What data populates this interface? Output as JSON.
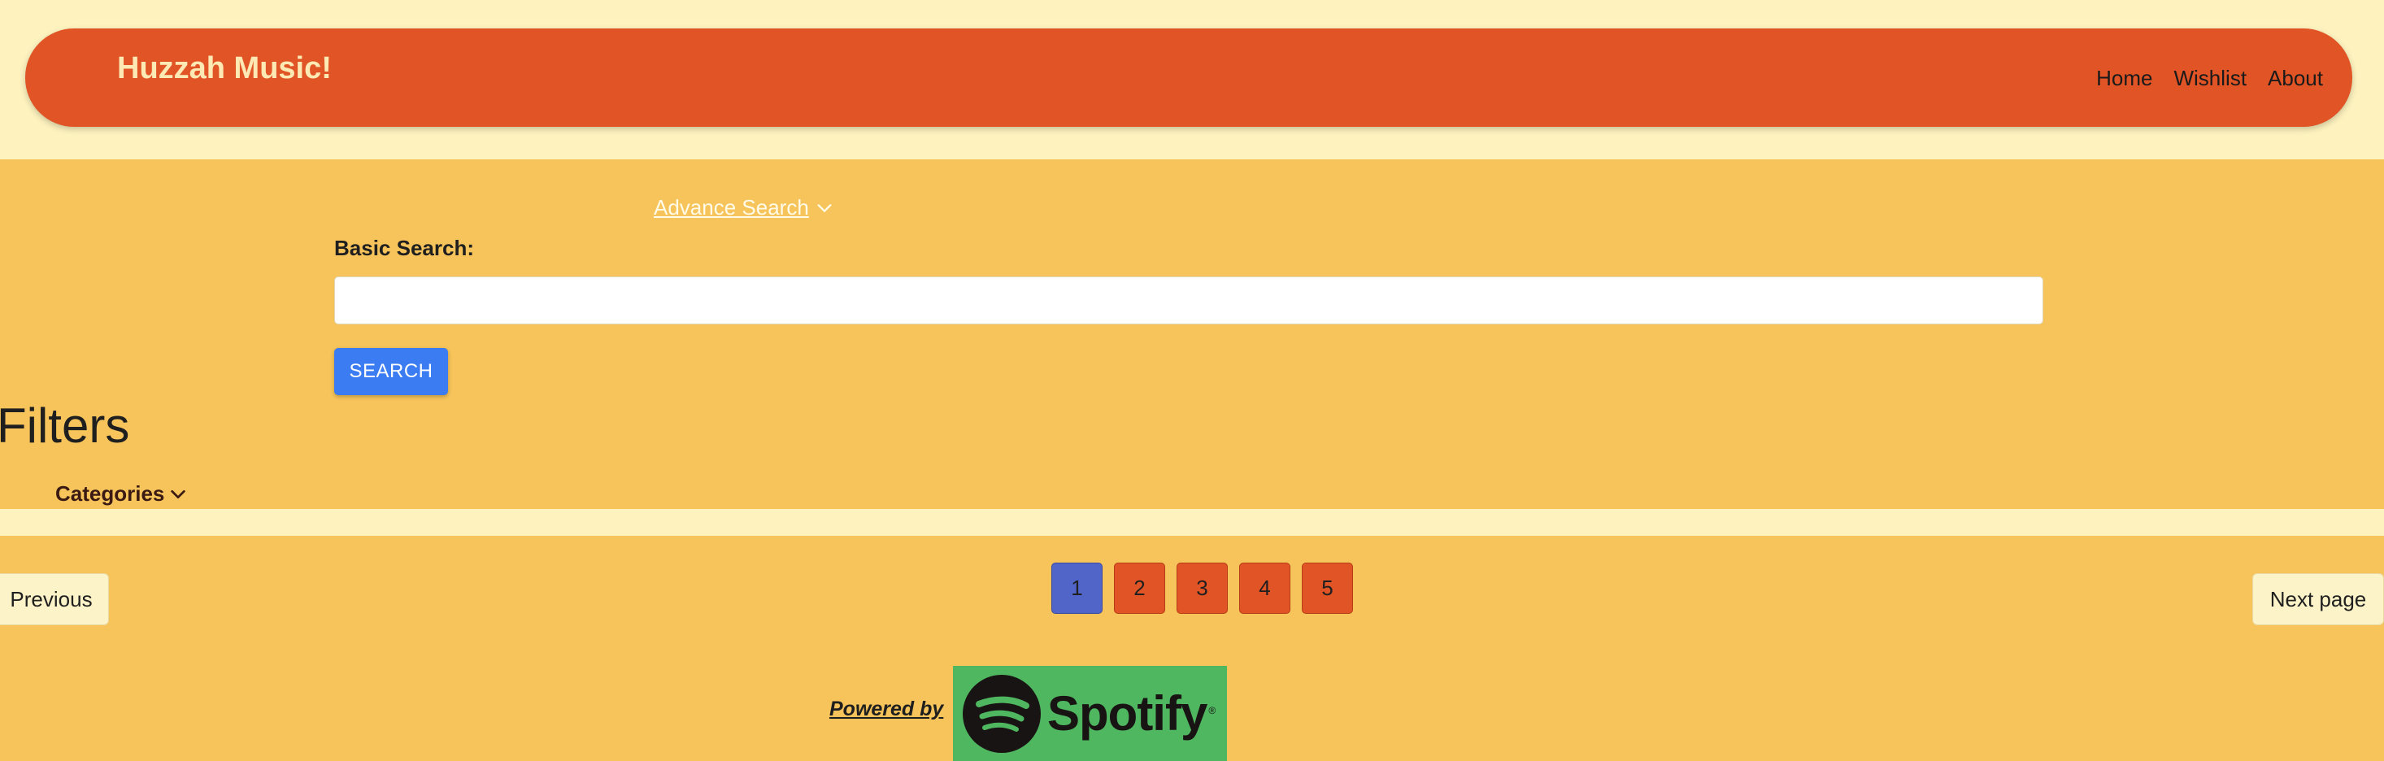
{
  "header": {
    "brand": "Huzzah Music!",
    "nav": [
      {
        "label": "Home"
      },
      {
        "label": "Wishlist"
      },
      {
        "label": "About"
      }
    ]
  },
  "search": {
    "advance_label": "Advance Search",
    "basic_label": "Basic Search:",
    "input_value": "",
    "input_placeholder": "",
    "button_label": "SEARCH"
  },
  "filters": {
    "heading": "Filters",
    "categories_label": "Categories"
  },
  "pagination": {
    "previous_label": "Previous",
    "next_label": "Next page",
    "pages": [
      "1",
      "2",
      "3",
      "4",
      "5"
    ],
    "current_page": "1"
  },
  "footer": {
    "powered_by": "Powered by",
    "logo_text": "Spotify",
    "logo_mark": "®"
  },
  "colors": {
    "navbar": "#e05425",
    "brand_text": "#fde9b4",
    "page_background": "#fef3bf",
    "section_background": "#f6c45a",
    "search_button": "#3b7cf2",
    "active_page": "#5164c8",
    "page_button": "#e05425",
    "spotify_green": "#4fb760"
  },
  "icons": {
    "advance_toggle": "chevron-down-icon",
    "categories_toggle": "chevron-down-icon",
    "logo": "spotify-logo-icon"
  }
}
